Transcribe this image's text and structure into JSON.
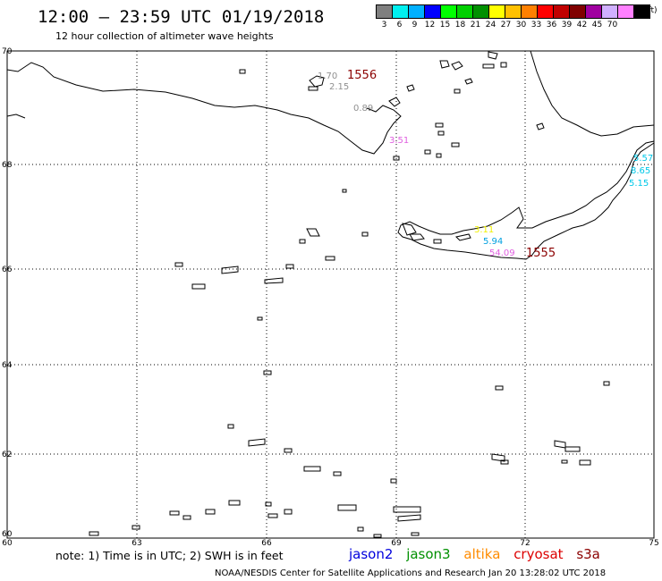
{
  "header": {
    "title": "12:00 – 23:59 UTC 01/19/2018",
    "subtitle": "12 hour collection of altimeter wave heights"
  },
  "legend": {
    "unit": "(ft)",
    "items": [
      {
        "label": "3",
        "color": "#7f7f7f"
      },
      {
        "label": "6",
        "color": "#00f0f0"
      },
      {
        "label": "9",
        "color": "#00b0ff"
      },
      {
        "label": "12",
        "color": "#0000ff"
      },
      {
        "label": "15",
        "color": "#00ff00"
      },
      {
        "label": "18",
        "color": "#00d000"
      },
      {
        "label": "21",
        "color": "#009000"
      },
      {
        "label": "24",
        "color": "#ffff00"
      },
      {
        "label": "27",
        "color": "#ffc000"
      },
      {
        "label": "30",
        "color": "#ff8000"
      },
      {
        "label": "33",
        "color": "#ff0000"
      },
      {
        "label": "36",
        "color": "#c00000"
      },
      {
        "label": "39",
        "color": "#800000"
      },
      {
        "label": "42",
        "color": "#a000a0"
      },
      {
        "label": "45",
        "color": "#d0b0ff"
      },
      {
        "label": "70",
        "color": "#ff80ff"
      },
      {
        "label": "",
        "color": "#000000"
      }
    ]
  },
  "map": {
    "lon_ticks": [
      "60",
      "63",
      "66",
      "69",
      "72",
      "75"
    ],
    "lat_ticks": [
      "70",
      "68",
      "66",
      "64",
      "62",
      "60"
    ],
    "observations": [
      {
        "value": "1.70",
        "color": "#909090"
      },
      {
        "value": "2.15",
        "color": "#909090"
      },
      {
        "value": "0.89",
        "color": "#909090"
      },
      {
        "value": "3.51",
        "color": "#e060e0"
      },
      {
        "value": "5.57",
        "color": "#00c8e8"
      },
      {
        "value": "8.65",
        "color": "#00c8e8"
      },
      {
        "value": "5.15",
        "color": "#00c8e8"
      },
      {
        "value": "3.11",
        "color": "#f0f000"
      },
      {
        "value": "5.94",
        "color": "#00a0e0"
      },
      {
        "value": "54.09",
        "color": "#e060e0"
      }
    ],
    "revolutions": [
      "1556",
      "1555"
    ]
  },
  "footer": {
    "note": "note:  1) Time is in UTC;  2) SWH is in feet",
    "satellites": [
      {
        "name": "jason2",
        "color": "#0000dd"
      },
      {
        "name": "jason3",
        "color": "#009000"
      },
      {
        "name": "altika",
        "color": "#ff8c00"
      },
      {
        "name": "cryosat",
        "color": "#dd0000"
      },
      {
        "name": "s3a",
        "color": "#8b0000"
      }
    ],
    "credit": "NOAA/NESDIS Center for Satellite Applications and Research    Jan 20 13:28:02 UTC 2018"
  }
}
